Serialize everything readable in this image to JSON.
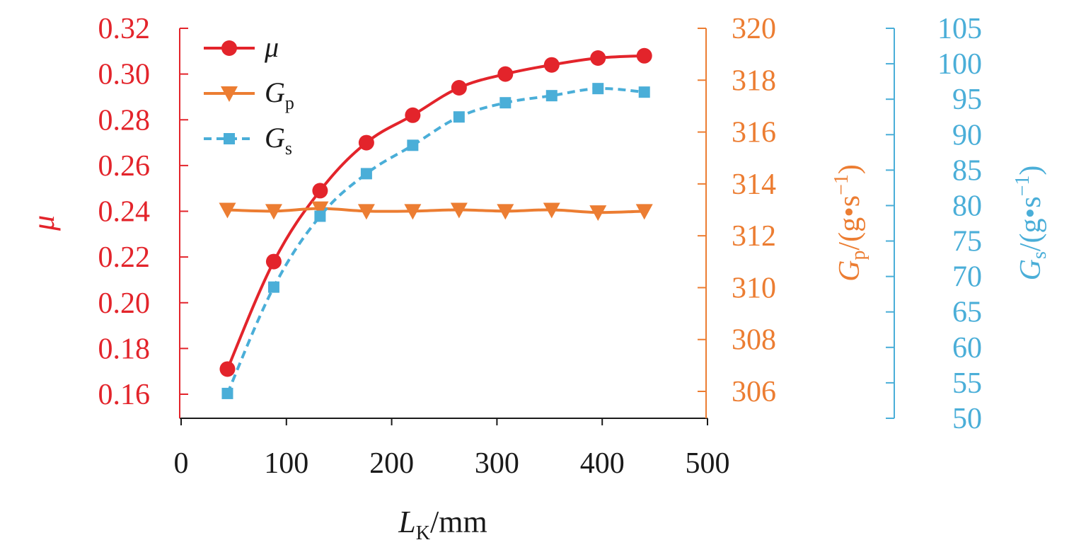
{
  "colors": {
    "mu": "#e3242b",
    "gp": "#ec7d32",
    "gs": "#4aaed8",
    "axis_x": "#1a1a1a"
  },
  "chart_data": {
    "type": "line",
    "x_label": {
      "main": "L",
      "sub": "K",
      "unit": "/mm"
    },
    "x_ticks": [
      "0",
      "100",
      "200",
      "300",
      "400",
      "500"
    ],
    "xlim": [
      0,
      500
    ],
    "x": [
      44,
      88,
      132,
      176,
      220,
      264,
      308,
      352,
      396,
      440
    ],
    "axes": {
      "left": {
        "label": "μ",
        "ylim": [
          0.15,
          0.325
        ],
        "ticks": [
          "0.16",
          "0.18",
          "0.20",
          "0.22",
          "0.24",
          "0.26",
          "0.28",
          "0.30",
          "0.32"
        ]
      },
      "right1": {
        "label": {
          "main": "G",
          "sub": "p",
          "unit": "/(g•s",
          "exp": "−1",
          "close": ")"
        },
        "ylim": [
          305.0,
          320.0
        ],
        "ticks": [
          "306",
          "308",
          "310",
          "312",
          "314",
          "316",
          "318",
          "320"
        ]
      },
      "right2": {
        "label": {
          "main": "G",
          "sub": "s",
          "unit": "/(g•s",
          "exp": "−1",
          "close": ")"
        },
        "ylim": [
          50,
          105
        ],
        "ticks": [
          "50",
          "55",
          "60",
          "65",
          "70",
          "75",
          "80",
          "85",
          "90",
          "95",
          "100",
          "105"
        ]
      }
    },
    "series": [
      {
        "name": "μ",
        "axis": "left",
        "values": [
          0.171,
          0.218,
          0.249,
          0.27,
          0.282,
          0.294,
          0.3,
          0.304,
          0.307,
          0.308
        ]
      },
      {
        "name": "G",
        "name_sub": "p",
        "axis": "right1",
        "values": [
          313.0,
          312.95,
          313.05,
          312.95,
          312.95,
          313.0,
          312.95,
          313.0,
          312.9,
          312.95
        ]
      },
      {
        "name": "G",
        "name_sub": "s",
        "axis": "right2",
        "values": [
          53.5,
          68.5,
          78.5,
          84.5,
          88.5,
          92.5,
          94.5,
          95.5,
          96.5,
          96.0
        ]
      }
    ],
    "legend_position": "top-left",
    "grid": false
  }
}
